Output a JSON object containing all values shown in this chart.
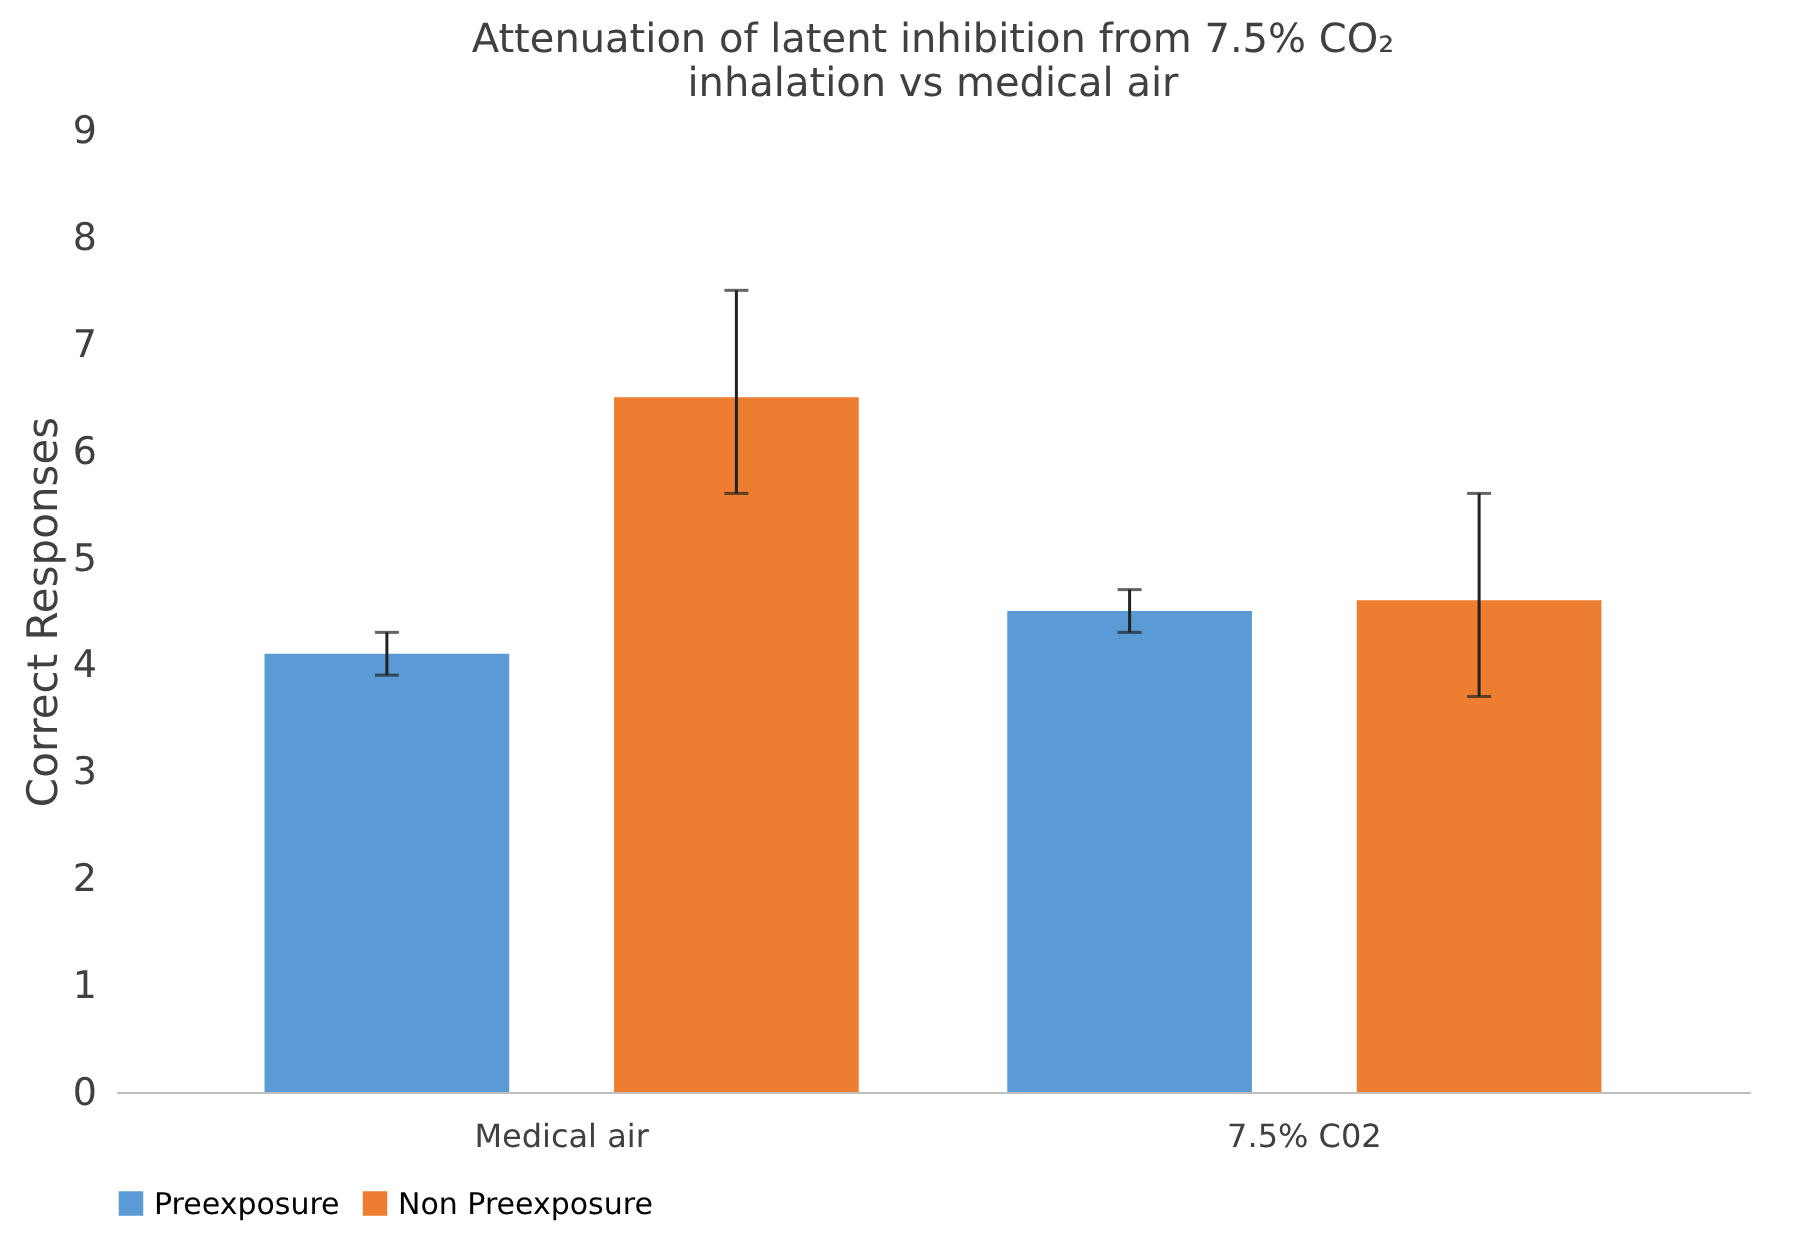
{
  "chart_data": {
    "type": "bar",
    "title": [
      "Attenuation of latent inhibition from 7.5% CO₂",
      "inhalation vs medical air"
    ],
    "ylabel": "Correct Responses",
    "categories": [
      "Medical air",
      "7.5% C02"
    ],
    "series": [
      {
        "name": "Preexposure",
        "color": "#5b9bd5",
        "values": [
          4.1,
          4.5
        ],
        "errors": [
          [
            3.9,
            4.3
          ],
          [
            4.3,
            4.7
          ]
        ]
      },
      {
        "name": "Non Preexposure",
        "color": "#ed7d31",
        "values": [
          6.5,
          4.6
        ],
        "errors": [
          [
            5.6,
            7.5
          ],
          [
            3.7,
            5.6
          ]
        ]
      }
    ],
    "ylim": [
      0,
      9
    ],
    "yticks": [
      0,
      1,
      2,
      3,
      4,
      5,
      6,
      7,
      8,
      9
    ],
    "grid": false,
    "legend": "bottom"
  }
}
